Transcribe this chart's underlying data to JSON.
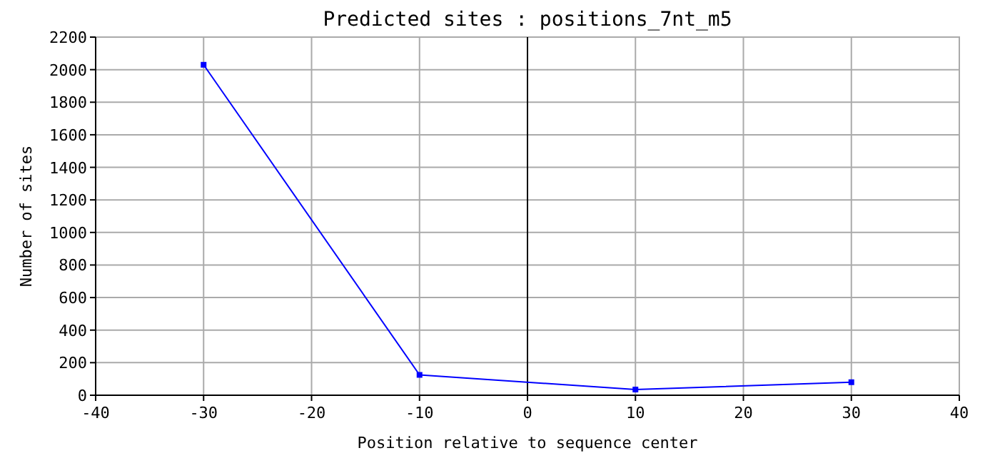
{
  "chart_data": {
    "type": "line",
    "title": "Predicted sites : positions_7nt_m5",
    "xlabel": "Position relative to sequence center",
    "ylabel": "Number of sites",
    "x": [
      -30,
      -10,
      10,
      30
    ],
    "series": [
      {
        "color": "#0000ff",
        "values": [
          2030,
          125,
          35,
          80
        ]
      }
    ],
    "xlim": [
      -40,
      40
    ],
    "xticks": [
      -40,
      -30,
      -20,
      -10,
      0,
      10,
      20,
      30,
      40
    ],
    "ylim": [
      0,
      2200
    ],
    "yticks": [
      0,
      200,
      400,
      600,
      800,
      1000,
      1200,
      1400,
      1600,
      1800,
      2000,
      2200
    ],
    "grid": true,
    "marker": "square",
    "line_style": "solid",
    "ref_lines": [
      {
        "axis": "x",
        "value": 0,
        "color": "#000000"
      }
    ]
  }
}
